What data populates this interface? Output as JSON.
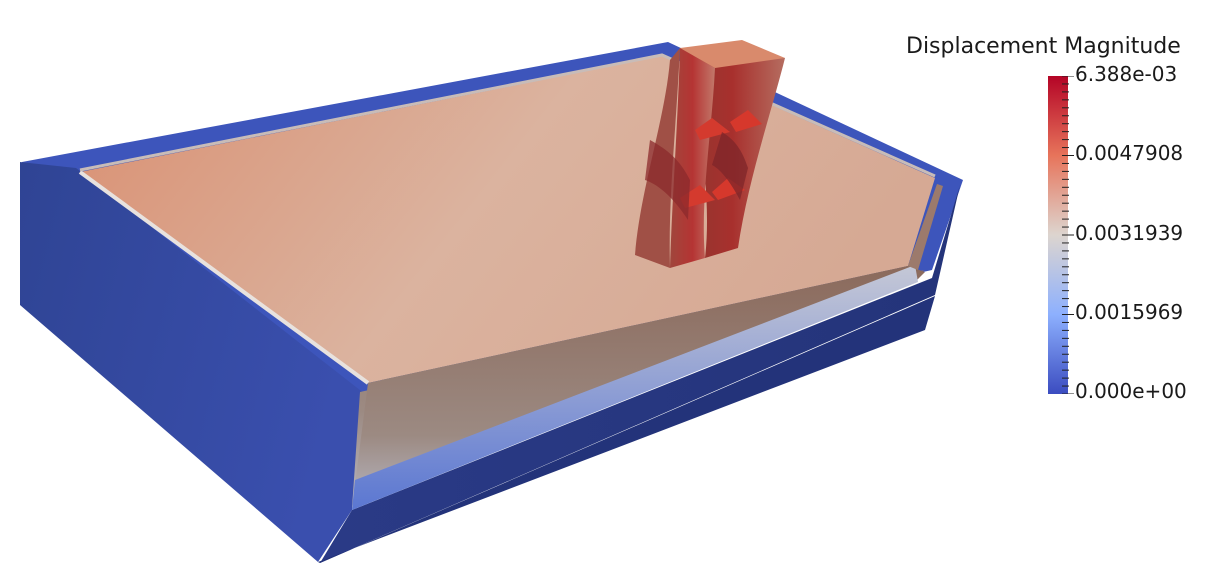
{
  "legend": {
    "title": "Displacement Magnitude",
    "labels": [
      "6.388e-03",
      "0.0047908",
      "0.0031939",
      "0.0015969",
      "0.000e+00"
    ]
  },
  "colors": {
    "rim_dark": "#2c3f87",
    "rim_mid": "#3b4cc0",
    "rim_light": "#4f6bd0",
    "top_surface": "#d99a7e",
    "wall_shade": "#7d6358",
    "fin_base": "#b87560",
    "fin_hot": "#c22a2c",
    "colormap_max": "#b40426",
    "colormap_mid": "#ddd5cf",
    "colormap_min": "#3b4cc0"
  }
}
